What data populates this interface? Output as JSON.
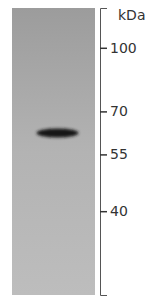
{
  "chart_data": {
    "type": "western_blot",
    "ylabel": "kDa",
    "values": [
      62
    ],
    "ylim": [
      25,
      125
    ],
    "yticks": [
      40,
      55,
      70,
      100
    ],
    "log": "y"
  }
}
